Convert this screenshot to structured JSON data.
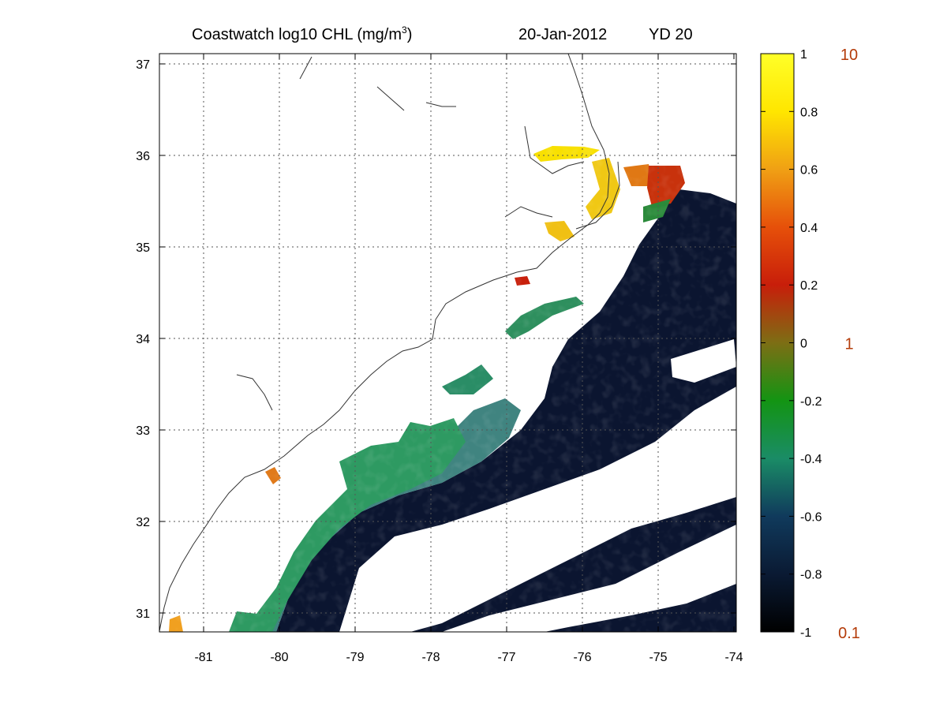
{
  "title": {
    "main": "Coastwatch  log10  CHL (mg/m",
    "superscript": "3",
    "close": ")",
    "date": "20-Jan-2012",
    "yearday": "YD 20"
  },
  "map": {
    "lon_range": [
      -81.6,
      -74.0
    ],
    "lat_range": [
      30.8,
      37.15
    ],
    "lon_ticks": [
      "-81",
      "-80",
      "-79",
      "-78",
      "-77",
      "-76",
      "-75",
      "-74"
    ],
    "lat_ticks": [
      "31",
      "32",
      "33",
      "34",
      "35",
      "36",
      "37"
    ],
    "grid": "dotted"
  },
  "colorbar": {
    "range": [
      -1,
      1
    ],
    "tick_labels": [
      "-1",
      "-0.8",
      "-0.6",
      "-0.4",
      "-0.2",
      "0",
      "0.2",
      "0.4",
      "0.6",
      "0.8",
      "1"
    ],
    "tick_values": [
      -1,
      -0.8,
      -0.6,
      -0.4,
      -0.2,
      0,
      0.2,
      0.4,
      0.6,
      0.8,
      1
    ],
    "linear_labels": [
      {
        "text": "10",
        "value": 1
      },
      {
        "text": "1",
        "value": 0
      },
      {
        "text": "0.1",
        "value": -1
      }
    ],
    "colors": [
      "#000000",
      "#0a1a33",
      "#103a5c",
      "#1a8c66",
      "#139413",
      "#7d6e14",
      "#c81e0a",
      "#e6500a",
      "#f0a014",
      "#ffe600",
      "#ffff28"
    ]
  }
}
